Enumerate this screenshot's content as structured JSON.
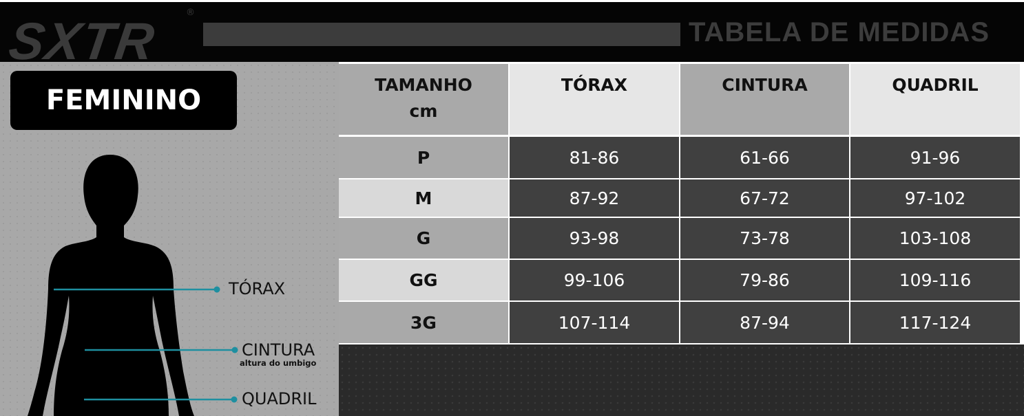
{
  "brand": {
    "logo": "SXTR",
    "registered": "®",
    "title": "TABELA DE MEDIDAS"
  },
  "panel": {
    "badge": "FEMININO",
    "labels": {
      "torax": "TÓRAX",
      "cintura": "CINTURA",
      "cintura_note": "altura do umbigo",
      "quadril": "QUADRIL"
    },
    "line_color": "#1e8fa0"
  },
  "table": {
    "headers": [
      {
        "line1": "TAMANHO",
        "line2": "cm"
      },
      {
        "line1": "TÓRAX",
        "line2": ""
      },
      {
        "line1": "CINTURA",
        "line2": ""
      },
      {
        "line1": "QUADRIL",
        "line2": ""
      }
    ],
    "rows": [
      {
        "size": "P",
        "torax": "81-86",
        "cintura": "61-66",
        "quadril": "91-96"
      },
      {
        "size": "M",
        "torax": "87-92",
        "cintura": "67-72",
        "quadril": "97-102"
      },
      {
        "size": "G",
        "torax": "93-98",
        "cintura": "73-78",
        "quadril": "103-108"
      },
      {
        "size": "GG",
        "torax": "99-106",
        "cintura": "79-86",
        "quadril": "109-116"
      },
      {
        "size": "3G",
        "torax": "107-114",
        "cintura": "87-94",
        "quadril": "117-124"
      }
    ]
  }
}
